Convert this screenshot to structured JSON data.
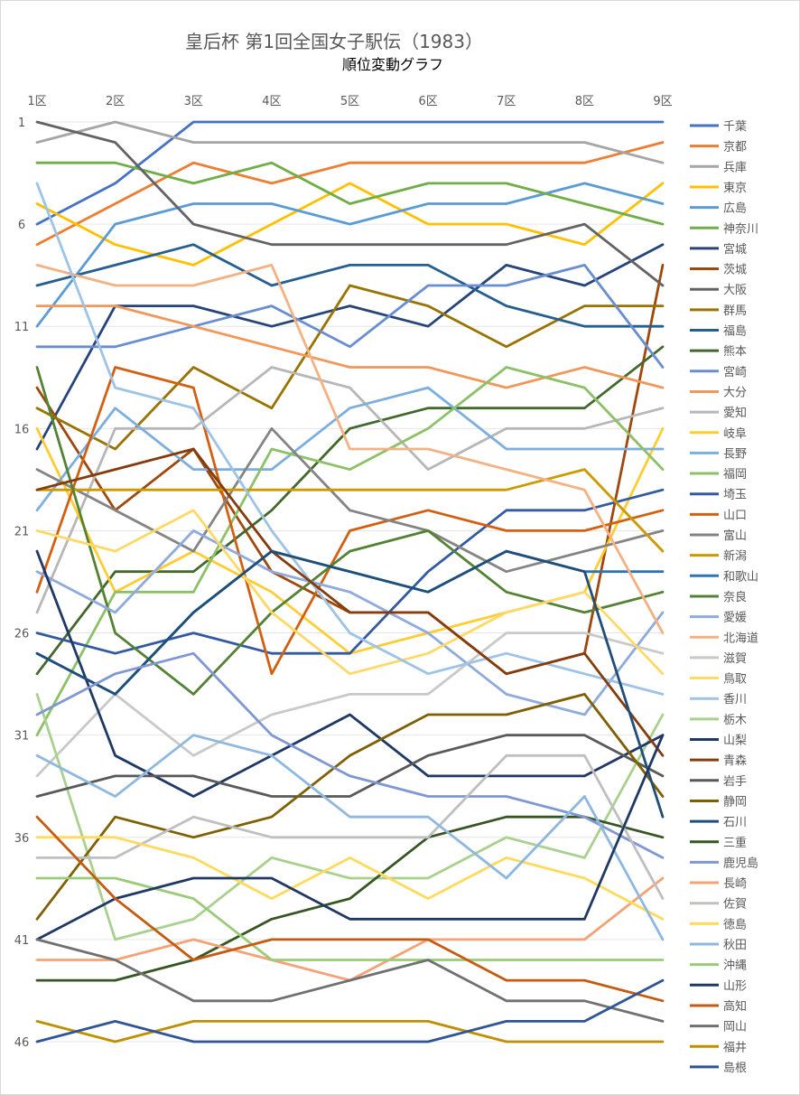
{
  "chart_data": {
    "type": "line",
    "title": "皇后杯 第1回全国女子駅伝（1983）",
    "subtitle": "順位変動グラフ",
    "x": [
      "1区",
      "2区",
      "3区",
      "4区",
      "5区",
      "6区",
      "7区",
      "8区",
      "9区"
    ],
    "y_ticks": [
      1,
      6,
      11,
      16,
      21,
      26,
      31,
      36,
      41,
      46
    ],
    "ylim": [
      1,
      46
    ],
    "y_reversed": true,
    "grid": true,
    "legend_position": "right",
    "series": [
      {
        "name": "千葉",
        "color": "#4472C4",
        "values": [
          6,
          4,
          1,
          1,
          1,
          1,
          1,
          1,
          1
        ]
      },
      {
        "name": "京都",
        "color": "#ED7D31",
        "values": [
          7,
          5,
          3,
          4,
          3,
          3,
          3,
          3,
          2
        ]
      },
      {
        "name": "兵庫",
        "color": "#A5A5A5",
        "values": [
          2,
          1,
          2,
          2,
          2,
          2,
          2,
          2,
          3
        ]
      },
      {
        "name": "東京",
        "color": "#FFC000",
        "values": [
          5,
          7,
          8,
          6,
          4,
          6,
          6,
          7,
          4
        ]
      },
      {
        "name": "広島",
        "color": "#5B9BD5",
        "values": [
          11,
          6,
          5,
          5,
          6,
          5,
          5,
          4,
          5
        ]
      },
      {
        "name": "神奈川",
        "color": "#70AD47",
        "values": [
          3,
          3,
          4,
          3,
          5,
          4,
          4,
          5,
          6
        ]
      },
      {
        "name": "宮城",
        "color": "#264478",
        "values": [
          17,
          10,
          10,
          11,
          10,
          11,
          8,
          9,
          7
        ]
      },
      {
        "name": "茨城",
        "color": "#9E480E",
        "values": [
          14,
          20,
          17,
          23,
          25,
          25,
          28,
          27,
          8
        ]
      },
      {
        "name": "大阪",
        "color": "#636363",
        "values": [
          1,
          2,
          6,
          7,
          7,
          7,
          7,
          6,
          9
        ]
      },
      {
        "name": "群馬",
        "color": "#997300",
        "values": [
          15,
          17,
          13,
          15,
          9,
          10,
          12,
          10,
          10
        ]
      },
      {
        "name": "福島",
        "color": "#255E91",
        "values": [
          9,
          8,
          7,
          9,
          8,
          8,
          10,
          11,
          11
        ]
      },
      {
        "name": "熊本",
        "color": "#43682B",
        "values": [
          28,
          23,
          23,
          20,
          16,
          15,
          15,
          15,
          12
        ]
      },
      {
        "name": "宮崎",
        "color": "#698ED0",
        "values": [
          12,
          12,
          11,
          10,
          12,
          9,
          9,
          8,
          13
        ]
      },
      {
        "name": "大分",
        "color": "#F1975A",
        "values": [
          10,
          10,
          11,
          12,
          13,
          13,
          14,
          13,
          14
        ]
      },
      {
        "name": "愛知",
        "color": "#B7B7B7",
        "values": [
          25,
          16,
          16,
          13,
          14,
          18,
          16,
          16,
          15
        ]
      },
      {
        "name": "岐阜",
        "color": "#FFCD33",
        "values": [
          16,
          24,
          22,
          24,
          27,
          26,
          25,
          24,
          16
        ]
      },
      {
        "name": "長野",
        "color": "#7CAFDD",
        "values": [
          20,
          15,
          18,
          18,
          15,
          14,
          17,
          17,
          17
        ]
      },
      {
        "name": "福岡",
        "color": "#8CC168",
        "values": [
          31,
          24,
          24,
          17,
          18,
          16,
          13,
          14,
          18
        ]
      },
      {
        "name": "埼玉",
        "color": "#335AA1",
        "values": [
          26,
          27,
          26,
          27,
          27,
          23,
          20,
          20,
          19
        ]
      },
      {
        "name": "山口",
        "color": "#D26012",
        "values": [
          24,
          13,
          14,
          28,
          21,
          20,
          21,
          21,
          20
        ]
      },
      {
        "name": "富山",
        "color": "#848484",
        "values": [
          18,
          20,
          22,
          16,
          20,
          21,
          23,
          22,
          21
        ]
      },
      {
        "name": "新潟",
        "color": "#CC9A00",
        "values": [
          19,
          19,
          19,
          19,
          19,
          19,
          19,
          18,
          22
        ]
      },
      {
        "name": "和歌山",
        "color": "#2E75B6",
        "values": [
          27,
          29,
          25,
          22,
          23,
          24,
          22,
          23,
          23
        ]
      },
      {
        "name": "奈良",
        "color": "#548235",
        "values": [
          13,
          26,
          29,
          25,
          22,
          21,
          24,
          25,
          24
        ]
      },
      {
        "name": "愛媛",
        "color": "#8FAADC",
        "values": [
          23,
          25,
          21,
          23,
          24,
          26,
          29,
          30,
          25
        ]
      },
      {
        "name": "北海道",
        "color": "#F4B183",
        "values": [
          8,
          9,
          9,
          8,
          17,
          17,
          18,
          19,
          26
        ]
      },
      {
        "name": "滋賀",
        "color": "#C9C9C9",
        "values": [
          33,
          29,
          32,
          30,
          29,
          29,
          26,
          26,
          27
        ]
      },
      {
        "name": "鳥取",
        "color": "#FFD966",
        "values": [
          21,
          22,
          20,
          25,
          28,
          27,
          25,
          24,
          28
        ]
      },
      {
        "name": "香川",
        "color": "#9DC3E6",
        "values": [
          4,
          14,
          15,
          21,
          26,
          28,
          27,
          28,
          29
        ]
      },
      {
        "name": "栃木",
        "color": "#A9D18E",
        "values": [
          29,
          41,
          40,
          37,
          38,
          38,
          36,
          37,
          30
        ]
      },
      {
        "name": "山梨",
        "color": "#1F3864",
        "values": [
          22,
          32,
          34,
          32,
          30,
          33,
          33,
          33,
          31
        ]
      },
      {
        "name": "青森",
        "color": "#843C0C",
        "values": [
          19,
          18,
          17,
          22,
          25,
          25,
          28,
          27,
          32
        ]
      },
      {
        "name": "岩手",
        "color": "#595959",
        "values": [
          34,
          33,
          33,
          34,
          34,
          32,
          31,
          31,
          33
        ]
      },
      {
        "name": "静岡",
        "color": "#7F6000",
        "values": [
          40,
          35,
          36,
          35,
          32,
          30,
          30,
          29,
          34
        ]
      },
      {
        "name": "石川",
        "color": "#1F4E79",
        "values": [
          27,
          29,
          25,
          22,
          23,
          24,
          22,
          23,
          35
        ]
      },
      {
        "name": "三重",
        "color": "#375623",
        "values": [
          43,
          43,
          42,
          40,
          39,
          36,
          35,
          35,
          36
        ]
      },
      {
        "name": "鹿児島",
        "color": "#7F97D3",
        "values": [
          30,
          28,
          27,
          31,
          33,
          34,
          34,
          35,
          37
        ]
      },
      {
        "name": "長崎",
        "color": "#F4A276",
        "values": [
          42,
          42,
          41,
          42,
          43,
          41,
          41,
          41,
          38
        ]
      },
      {
        "name": "佐賀",
        "color": "#BFBFBF",
        "values": [
          37,
          37,
          35,
          36,
          36,
          36,
          32,
          32,
          39
        ]
      },
      {
        "name": "徳島",
        "color": "#FFDA5C",
        "values": [
          36,
          36,
          37,
          39,
          37,
          39,
          37,
          38,
          40
        ]
      },
      {
        "name": "秋田",
        "color": "#8FB8E0",
        "values": [
          32,
          34,
          31,
          32,
          35,
          35,
          38,
          34,
          41
        ]
      },
      {
        "name": "沖縄",
        "color": "#9BCB78",
        "values": [
          38,
          38,
          39,
          42,
          42,
          42,
          42,
          42,
          42
        ]
      },
      {
        "name": "山形",
        "color": "#203864",
        "values": [
          41,
          39,
          38,
          38,
          40,
          40,
          40,
          40,
          31
        ]
      },
      {
        "name": "高知",
        "color": "#C55A11",
        "values": [
          35,
          39,
          42,
          41,
          41,
          41,
          43,
          43,
          44
        ]
      },
      {
        "name": "岡山",
        "color": "#707070",
        "values": [
          41,
          42,
          44,
          44,
          43,
          42,
          44,
          44,
          45
        ]
      },
      {
        "name": "福井",
        "color": "#BF8F00",
        "values": [
          45,
          46,
          45,
          45,
          45,
          45,
          46,
          46,
          46
        ]
      },
      {
        "name": "島根",
        "color": "#2F5597",
        "values": [
          46,
          45,
          46,
          46,
          46,
          46,
          45,
          45,
          43
        ]
      }
    ]
  }
}
